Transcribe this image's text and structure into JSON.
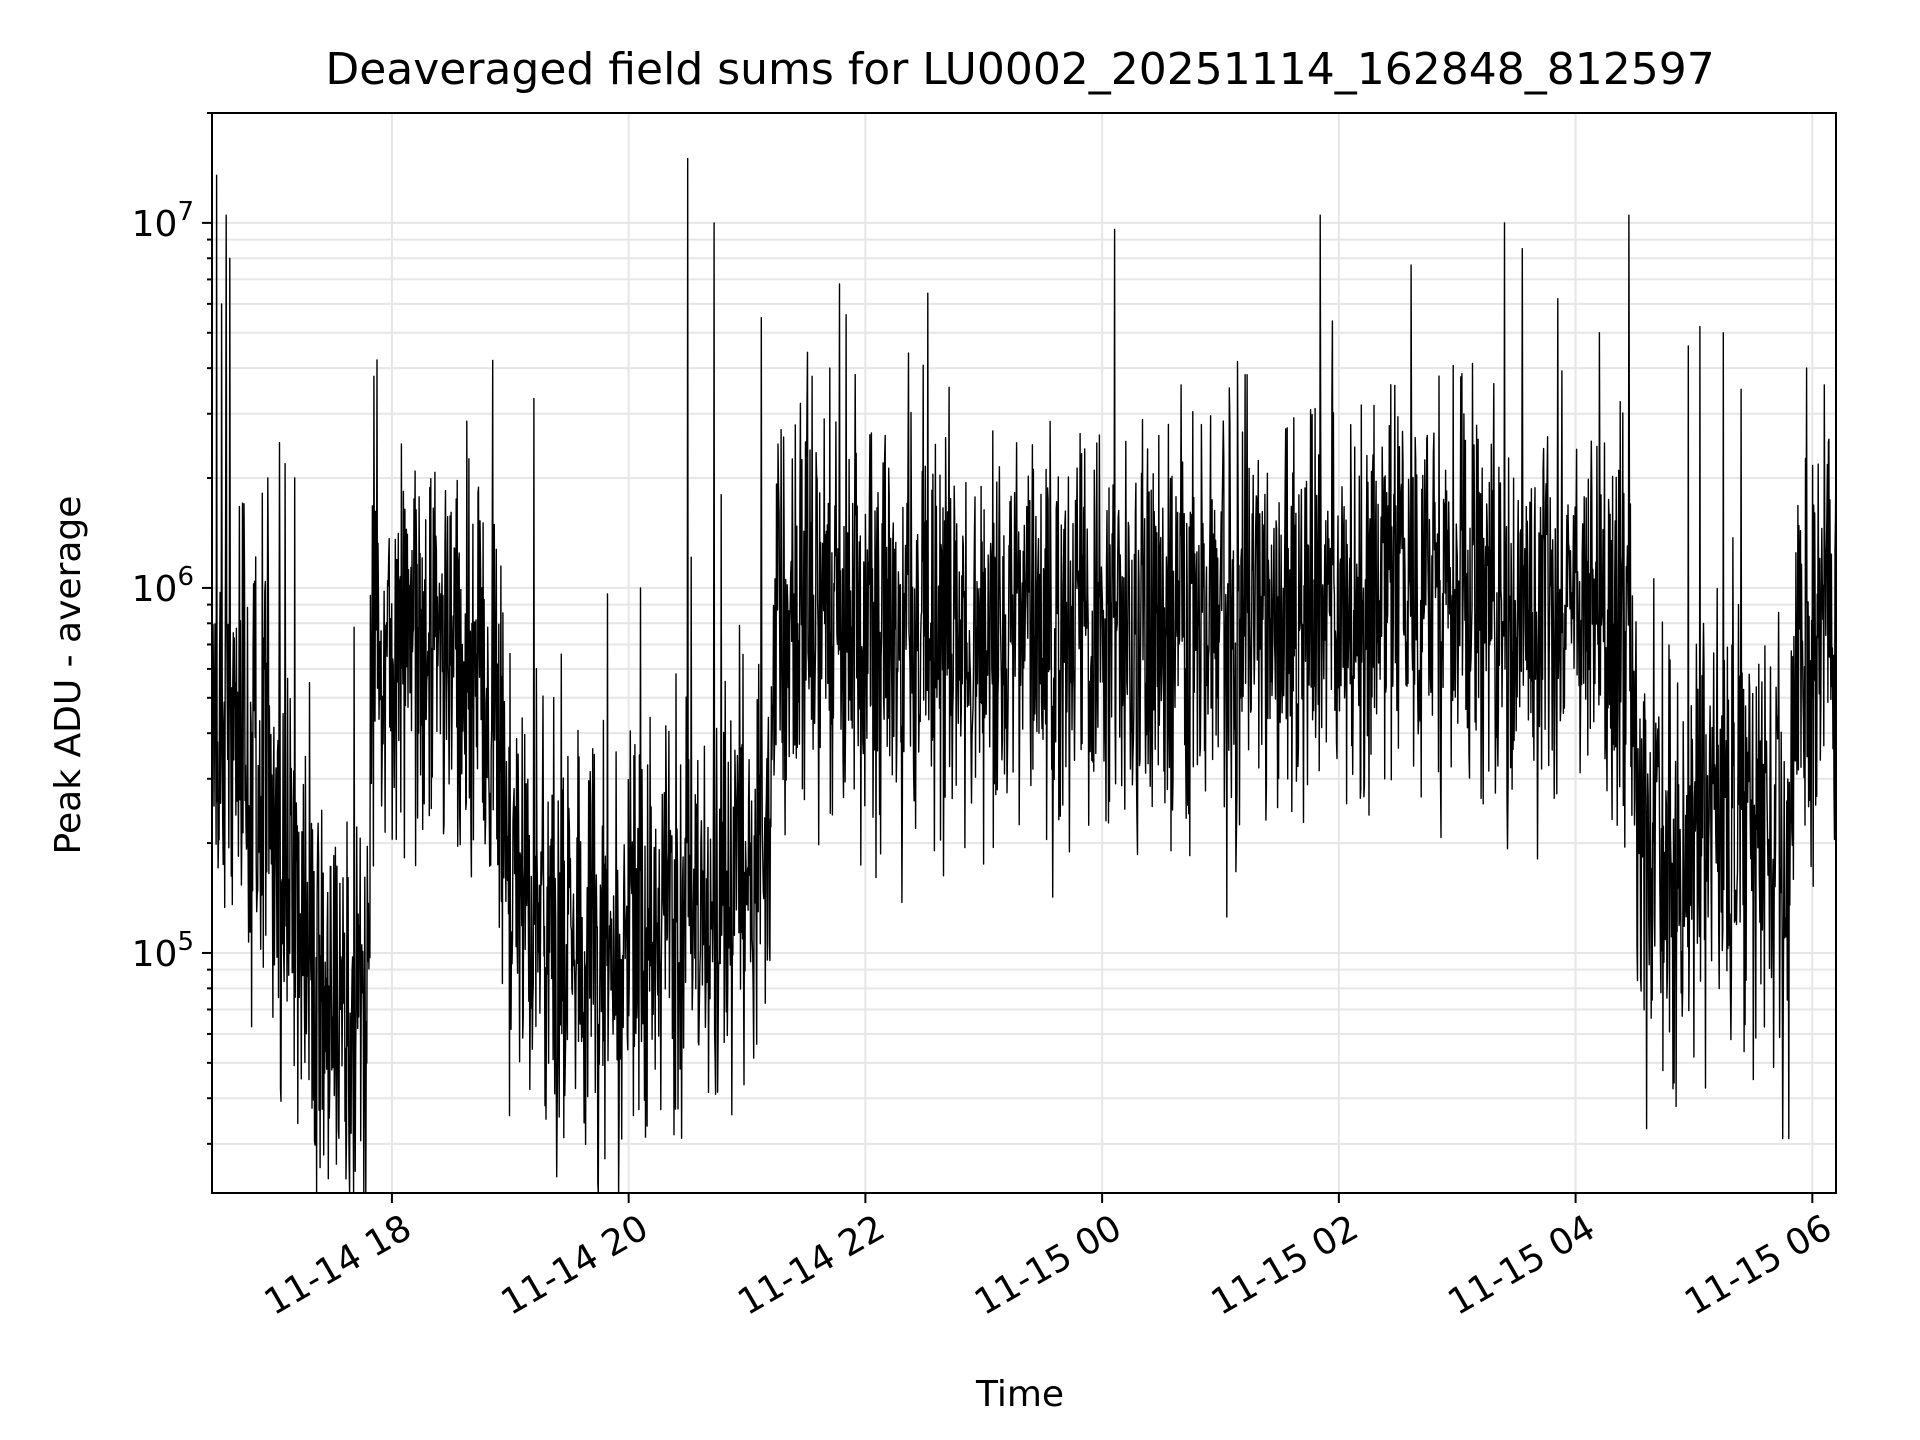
{
  "chart_data": {
    "type": "line",
    "title": "Deaveraged field sums for LU0002_20251114_162848_812597",
    "xlabel": "Time",
    "ylabel": "Peak ADU - average",
    "yscale": "log",
    "ylim": [
      22000,
      20000000
    ],
    "xlim_hours": [
      16.48,
      30.2
    ],
    "x_unit": "hours since 2025-11-14 00:00",
    "x_ticks": [
      {
        "value": 18,
        "label": "11-14 18"
      },
      {
        "value": 20,
        "label": "11-14 20"
      },
      {
        "value": 22,
        "label": "11-14 22"
      },
      {
        "value": 24,
        "label": "11-15 00"
      },
      {
        "value": 26,
        "label": "11-15 02"
      },
      {
        "value": 28,
        "label": "11-15 04"
      },
      {
        "value": 30,
        "label": "11-15 06"
      }
    ],
    "y_ticks": [
      {
        "value": 100000,
        "base": "10",
        "exp": "5"
      },
      {
        "value": 1000000,
        "base": "10",
        "exp": "6"
      },
      {
        "value": 10000000,
        "base": "10",
        "exp": "7"
      }
    ],
    "grid": true,
    "series_color": "#000000",
    "grid_color": "#e6e6e6",
    "noise_spread": 0.28,
    "baseline": [
      [
        16.48,
        500000
      ],
      [
        16.6,
        420000
      ],
      [
        16.8,
        350000
      ],
      [
        17.0,
        200000
      ],
      [
        17.25,
        130000
      ],
      [
        17.45,
        70000
      ],
      [
        17.55,
        60000
      ],
      [
        17.8,
        70000
      ],
      [
        17.83,
        550000
      ],
      [
        18.2,
        700000
      ],
      [
        18.4,
        650000
      ],
      [
        18.7,
        600000
      ],
      [
        18.9,
        350000
      ],
      [
        19.0,
        140000
      ],
      [
        19.3,
        120000
      ],
      [
        19.6,
        100000
      ],
      [
        20.0,
        110000
      ],
      [
        20.3,
        125000
      ],
      [
        20.6,
        140000
      ],
      [
        21.0,
        170000
      ],
      [
        21.18,
        190000
      ],
      [
        21.22,
        750000
      ],
      [
        21.5,
        800000
      ],
      [
        22.0,
        780000
      ],
      [
        23.0,
        800000
      ],
      [
        24.0,
        760000
      ],
      [
        25.0,
        800000
      ],
      [
        26.0,
        880000
      ],
      [
        27.0,
        950000
      ],
      [
        27.5,
        900000
      ],
      [
        28.0,
        820000
      ],
      [
        28.45,
        800000
      ],
      [
        28.5,
        250000
      ],
      [
        28.8,
        170000
      ],
      [
        29.2,
        250000
      ],
      [
        29.6,
        200000
      ],
      [
        29.8,
        200000
      ],
      [
        29.85,
        500000
      ],
      [
        30.2,
        900000
      ]
    ],
    "spikes": [
      [
        16.52,
        13500000
      ],
      [
        16.56,
        6000000
      ],
      [
        16.6,
        10500000
      ],
      [
        16.63,
        8000000
      ],
      [
        16.75,
        1700000
      ],
      [
        16.95,
        2000000
      ],
      [
        17.05,
        2500000
      ],
      [
        17.18,
        2000000
      ],
      [
        17.3,
        3000000
      ],
      [
        17.68,
        780000
      ],
      [
        17.85,
        3800000
      ],
      [
        18.85,
        4200000
      ],
      [
        19.2,
        3300000
      ],
      [
        20.1,
        1000000
      ],
      [
        20.5,
        15000000
      ],
      [
        20.72,
        10000000
      ],
      [
        20.78,
        1800000
      ],
      [
        21.12,
        5500000
      ],
      [
        21.45,
        3200000
      ],
      [
        21.55,
        3800000
      ],
      [
        21.7,
        4000000
      ],
      [
        21.78,
        6800000
      ],
      [
        22.15,
        2200000
      ],
      [
        22.75,
        1900000
      ],
      [
        24.85,
        1500000
      ],
      [
        25.8,
        3100000
      ],
      [
        26.1,
        2800000
      ],
      [
        26.9,
        2100000
      ],
      [
        27.4,
        10000000
      ],
      [
        27.55,
        8500000
      ],
      [
        27.85,
        6200000
      ],
      [
        28.2,
        5000000
      ],
      [
        28.45,
        10500000
      ],
      [
        28.95,
        4600000
      ],
      [
        29.05,
        5200000
      ],
      [
        29.25,
        5000000
      ],
      [
        29.4,
        3500000
      ],
      [
        29.75,
        2900000
      ],
      [
        29.95,
        4000000
      ],
      [
        30.1,
        3600000
      ]
    ],
    "dips": [
      [
        17.3,
        45000
      ],
      [
        17.45,
        48000
      ],
      [
        17.65,
        45000
      ],
      [
        19.4,
        52000
      ],
      [
        20.2,
        58000
      ],
      [
        28.6,
        33000
      ],
      [
        28.85,
        38000
      ],
      [
        29.5,
        45000
      ],
      [
        29.75,
        31000
      ],
      [
        29.8,
        31000
      ]
    ]
  }
}
